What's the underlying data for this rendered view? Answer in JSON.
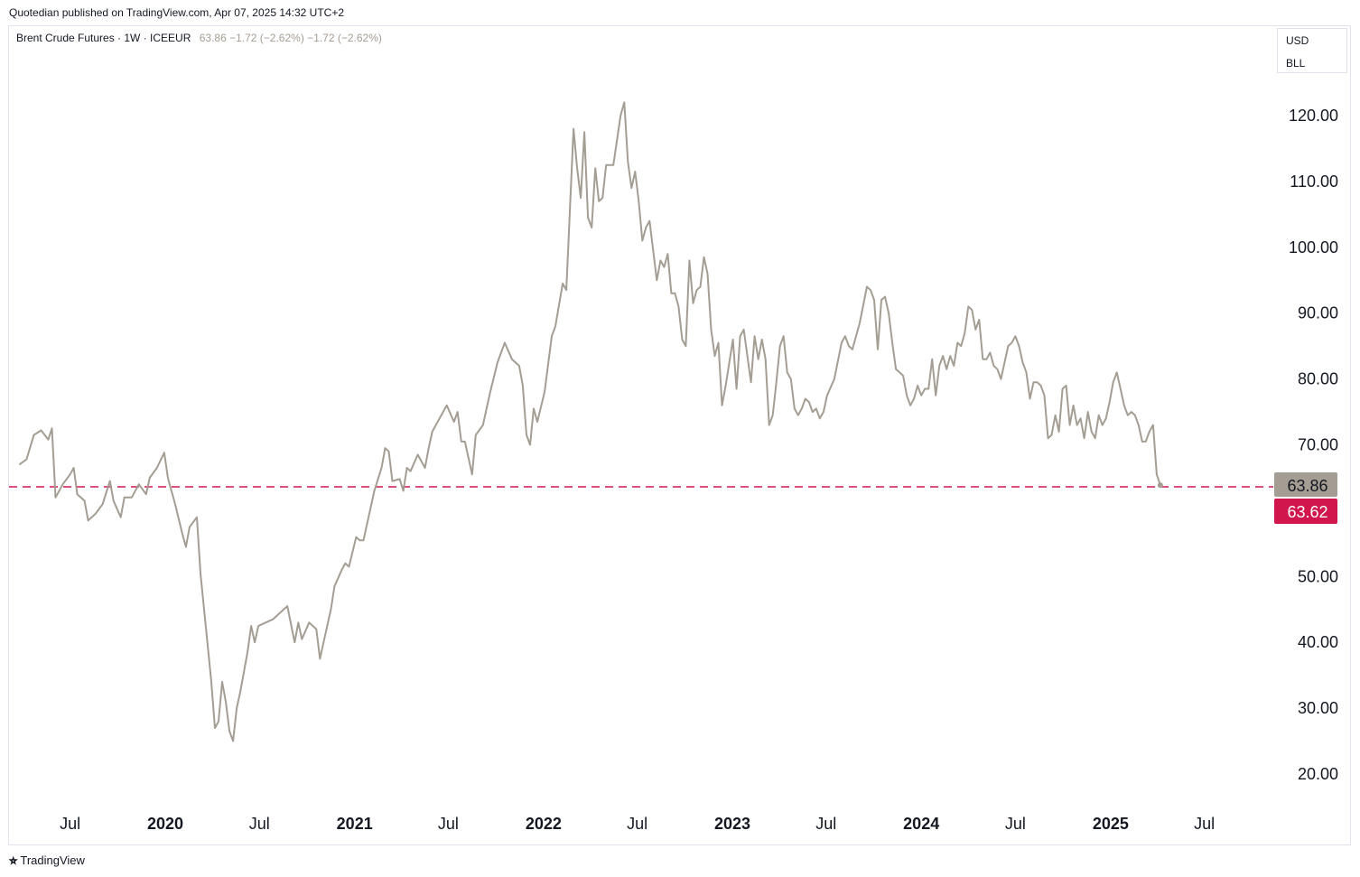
{
  "header": {
    "publisher_line": "Quotedian published on TradingView.com, Apr 07, 2025 14:32 UTC+2"
  },
  "legend": {
    "symbol": "Brent Crude Futures · 1W · ICEEUR",
    "values": "63.86  −1.72 (−2.62%)  −1.72 (−2.62%)"
  },
  "unit_box": {
    "currency": "USD",
    "unit": "BLL"
  },
  "footer": {
    "brand": "TradingView"
  },
  "colors": {
    "line": "#a49d93",
    "reference_line": "#d1164d",
    "last_label_bg": "#a49d93",
    "ref_label_bg": "#d1164d"
  },
  "chart_data": {
    "type": "line",
    "interval": "1W",
    "y_ticks": [
      "120.00",
      "110.00",
      "100.00",
      "90.00",
      "80.00",
      "70.00",
      "50.00",
      "40.00",
      "30.00",
      "20.00"
    ],
    "x_ticks": [
      {
        "label": "Jul",
        "date": "2019-07-01"
      },
      {
        "label": "2020",
        "date": "2020-01-01"
      },
      {
        "label": "Jul",
        "date": "2020-07-01"
      },
      {
        "label": "2021",
        "date": "2021-01-01"
      },
      {
        "label": "Jul",
        "date": "2021-07-01"
      },
      {
        "label": "2022",
        "date": "2022-01-01"
      },
      {
        "label": "Jul",
        "date": "2022-07-01"
      },
      {
        "label": "2023",
        "date": "2023-01-01"
      },
      {
        "label": "Jul",
        "date": "2023-07-01"
      },
      {
        "label": "2024",
        "date": "2024-01-01"
      },
      {
        "label": "Jul",
        "date": "2024-07-01"
      },
      {
        "label": "2025",
        "date": "2025-01-01"
      },
      {
        "label": "Jul",
        "date": "2025-07-01"
      }
    ],
    "last_value": "63.86",
    "reference_value": "63.62",
    "series": [
      {
        "points": [
          [
            "2019-03-25",
            67.0
          ],
          [
            "2019-04-08",
            67.8
          ],
          [
            "2019-04-22",
            71.5
          ],
          [
            "2019-05-06",
            72.2
          ],
          [
            "2019-05-20",
            70.8
          ],
          [
            "2019-05-27",
            72.5
          ],
          [
            "2019-06-03",
            62.0
          ],
          [
            "2019-06-17",
            64.0
          ],
          [
            "2019-07-01",
            65.5
          ],
          [
            "2019-07-08",
            66.5
          ],
          [
            "2019-07-15",
            62.5
          ],
          [
            "2019-07-29",
            61.5
          ],
          [
            "2019-08-05",
            58.5
          ],
          [
            "2019-08-19",
            59.5
          ],
          [
            "2019-09-02",
            61.0
          ],
          [
            "2019-09-16",
            64.5
          ],
          [
            "2019-09-23",
            61.5
          ],
          [
            "2019-10-07",
            59.0
          ],
          [
            "2019-10-14",
            62.0
          ],
          [
            "2019-10-28",
            62.0
          ],
          [
            "2019-11-11",
            64.0
          ],
          [
            "2019-11-25",
            62.5
          ],
          [
            "2019-12-02",
            65.0
          ],
          [
            "2019-12-16",
            66.5
          ],
          [
            "2019-12-30",
            68.8
          ],
          [
            "2020-01-06",
            65.0
          ],
          [
            "2020-01-20",
            61.0
          ],
          [
            "2020-02-03",
            56.5
          ],
          [
            "2020-02-10",
            54.5
          ],
          [
            "2020-02-17",
            57.5
          ],
          [
            "2020-03-02",
            59.0
          ],
          [
            "2020-03-09",
            50.5
          ],
          [
            "2020-03-16",
            45.0
          ],
          [
            "2020-03-30",
            34.0
          ],
          [
            "2020-04-06",
            27.0
          ],
          [
            "2020-04-13",
            28.0
          ],
          [
            "2020-04-20",
            34.0
          ],
          [
            "2020-04-27",
            31.0
          ],
          [
            "2020-05-04",
            26.5
          ],
          [
            "2020-05-11",
            25.0
          ],
          [
            "2020-05-18",
            30.0
          ],
          [
            "2020-05-25",
            32.5
          ],
          [
            "2020-06-08",
            38.5
          ],
          [
            "2020-06-15",
            42.5
          ],
          [
            "2020-06-22",
            40.0
          ],
          [
            "2020-06-29",
            42.5
          ],
          [
            "2020-07-13",
            43.0
          ],
          [
            "2020-07-27",
            43.5
          ],
          [
            "2020-08-10",
            44.5
          ],
          [
            "2020-08-24",
            45.5
          ],
          [
            "2020-09-07",
            40.0
          ],
          [
            "2020-09-14",
            43.0
          ],
          [
            "2020-09-21",
            40.5
          ],
          [
            "2020-10-05",
            43.0
          ],
          [
            "2020-10-19",
            42.0
          ],
          [
            "2020-10-26",
            37.5
          ],
          [
            "2020-11-02",
            40.0
          ],
          [
            "2020-11-16",
            45.0
          ],
          [
            "2020-11-23",
            48.5
          ],
          [
            "2020-12-07",
            51.0
          ],
          [
            "2020-12-14",
            52.0
          ],
          [
            "2020-12-21",
            51.5
          ],
          [
            "2021-01-04",
            56.0
          ],
          [
            "2021-01-11",
            55.5
          ],
          [
            "2021-01-18",
            55.5
          ],
          [
            "2021-02-01",
            60.5
          ],
          [
            "2021-02-08",
            63.0
          ],
          [
            "2021-02-22",
            66.5
          ],
          [
            "2021-03-01",
            69.5
          ],
          [
            "2021-03-08",
            69.0
          ],
          [
            "2021-03-15",
            64.5
          ],
          [
            "2021-03-29",
            64.8
          ],
          [
            "2021-04-05",
            63.0
          ],
          [
            "2021-04-12",
            66.5
          ],
          [
            "2021-04-19",
            66.0
          ],
          [
            "2021-05-03",
            68.5
          ],
          [
            "2021-05-17",
            66.5
          ],
          [
            "2021-05-24",
            69.5
          ],
          [
            "2021-05-31",
            72.0
          ],
          [
            "2021-06-14",
            74.0
          ],
          [
            "2021-06-28",
            76.0
          ],
          [
            "2021-07-12",
            73.5
          ],
          [
            "2021-07-19",
            75.0
          ],
          [
            "2021-07-26",
            70.5
          ],
          [
            "2021-08-02",
            70.5
          ],
          [
            "2021-08-16",
            65.5
          ],
          [
            "2021-08-23",
            71.5
          ],
          [
            "2021-09-06",
            73.0
          ],
          [
            "2021-09-20",
            78.0
          ],
          [
            "2021-10-04",
            82.5
          ],
          [
            "2021-10-18",
            85.5
          ],
          [
            "2021-11-01",
            83.0
          ],
          [
            "2021-11-15",
            82.0
          ],
          [
            "2021-11-22",
            79.0
          ],
          [
            "2021-11-29",
            71.5
          ],
          [
            "2021-12-06",
            70.0
          ],
          [
            "2021-12-13",
            75.5
          ],
          [
            "2021-12-20",
            73.5
          ],
          [
            "2022-01-03",
            78.0
          ],
          [
            "2022-01-17",
            86.5
          ],
          [
            "2022-01-24",
            88.0
          ],
          [
            "2022-02-07",
            94.5
          ],
          [
            "2022-02-14",
            93.5
          ],
          [
            "2022-02-28",
            118.0
          ],
          [
            "2022-03-07",
            112.0
          ],
          [
            "2022-03-14",
            107.5
          ],
          [
            "2022-03-21",
            117.5
          ],
          [
            "2022-03-28",
            104.5
          ],
          [
            "2022-04-04",
            103.0
          ],
          [
            "2022-04-11",
            112.0
          ],
          [
            "2022-04-18",
            107.0
          ],
          [
            "2022-04-25",
            107.5
          ],
          [
            "2022-05-02",
            112.5
          ],
          [
            "2022-05-16",
            112.5
          ],
          [
            "2022-05-30",
            120.0
          ],
          [
            "2022-06-06",
            122.0
          ],
          [
            "2022-06-13",
            113.0
          ],
          [
            "2022-06-20",
            109.0
          ],
          [
            "2022-06-27",
            111.5
          ],
          [
            "2022-07-04",
            107.0
          ],
          [
            "2022-07-11",
            101.0
          ],
          [
            "2022-07-18",
            103.0
          ],
          [
            "2022-07-25",
            104.0
          ],
          [
            "2022-08-08",
            95.0
          ],
          [
            "2022-08-15",
            98.0
          ],
          [
            "2022-08-22",
            97.0
          ],
          [
            "2022-08-29",
            99.0
          ],
          [
            "2022-09-05",
            93.0
          ],
          [
            "2022-09-12",
            93.0
          ],
          [
            "2022-09-19",
            91.0
          ],
          [
            "2022-09-26",
            86.0
          ],
          [
            "2022-10-03",
            85.0
          ],
          [
            "2022-10-10",
            98.0
          ],
          [
            "2022-10-17",
            91.5
          ],
          [
            "2022-10-24",
            93.5
          ],
          [
            "2022-10-31",
            94.0
          ],
          [
            "2022-11-07",
            98.5
          ],
          [
            "2022-11-14",
            96.0
          ],
          [
            "2022-11-21",
            87.5
          ],
          [
            "2022-11-28",
            83.5
          ],
          [
            "2022-12-05",
            85.5
          ],
          [
            "2022-12-12",
            76.0
          ],
          [
            "2022-12-19",
            79.0
          ],
          [
            "2023-01-02",
            86.0
          ],
          [
            "2023-01-09",
            78.5
          ],
          [
            "2023-01-16",
            86.5
          ],
          [
            "2023-01-23",
            87.5
          ],
          [
            "2023-02-06",
            79.5
          ],
          [
            "2023-02-13",
            86.5
          ],
          [
            "2023-02-20",
            83.0
          ],
          [
            "2023-02-27",
            86.0
          ],
          [
            "2023-03-06",
            83.0
          ],
          [
            "2023-03-13",
            73.0
          ],
          [
            "2023-03-20",
            74.5
          ],
          [
            "2023-03-27",
            79.5
          ],
          [
            "2023-04-03",
            85.0
          ],
          [
            "2023-04-10",
            86.5
          ],
          [
            "2023-04-17",
            81.0
          ],
          [
            "2023-04-24",
            80.0
          ],
          [
            "2023-05-01",
            75.5
          ],
          [
            "2023-05-08",
            74.5
          ],
          [
            "2023-05-15",
            75.5
          ],
          [
            "2023-05-22",
            77.0
          ],
          [
            "2023-05-29",
            76.5
          ],
          [
            "2023-06-05",
            75.0
          ],
          [
            "2023-06-12",
            75.5
          ],
          [
            "2023-06-19",
            74.0
          ],
          [
            "2023-06-26",
            75.0
          ],
          [
            "2023-07-03",
            77.5
          ],
          [
            "2023-07-17",
            80.0
          ],
          [
            "2023-07-31",
            85.5
          ],
          [
            "2023-08-07",
            86.5
          ],
          [
            "2023-08-14",
            85.0
          ],
          [
            "2023-08-21",
            84.5
          ],
          [
            "2023-09-04",
            88.5
          ],
          [
            "2023-09-18",
            94.0
          ],
          [
            "2023-09-25",
            93.5
          ],
          [
            "2023-10-02",
            92.0
          ],
          [
            "2023-10-09",
            84.5
          ],
          [
            "2023-10-16",
            92.0
          ],
          [
            "2023-10-23",
            92.5
          ],
          [
            "2023-10-30",
            90.0
          ],
          [
            "2023-11-06",
            85.5
          ],
          [
            "2023-11-13",
            81.5
          ],
          [
            "2023-11-20",
            81.0
          ],
          [
            "2023-11-27",
            80.5
          ],
          [
            "2023-12-04",
            77.5
          ],
          [
            "2023-12-11",
            76.0
          ],
          [
            "2023-12-18",
            77.0
          ],
          [
            "2023-12-25",
            79.0
          ],
          [
            "2024-01-01",
            77.5
          ],
          [
            "2024-01-08",
            78.5
          ],
          [
            "2024-01-15",
            78.5
          ],
          [
            "2024-01-22",
            83.0
          ],
          [
            "2024-01-29",
            77.5
          ],
          [
            "2024-02-05",
            82.0
          ],
          [
            "2024-02-12",
            83.5
          ],
          [
            "2024-02-19",
            81.5
          ],
          [
            "2024-02-26",
            83.5
          ],
          [
            "2024-03-04",
            82.0
          ],
          [
            "2024-03-11",
            85.5
          ],
          [
            "2024-03-18",
            85.0
          ],
          [
            "2024-03-25",
            87.0
          ],
          [
            "2024-04-01",
            91.0
          ],
          [
            "2024-04-08",
            90.5
          ],
          [
            "2024-04-15",
            87.5
          ],
          [
            "2024-04-22",
            89.0
          ],
          [
            "2024-04-29",
            83.0
          ],
          [
            "2024-05-06",
            83.0
          ],
          [
            "2024-05-13",
            84.0
          ],
          [
            "2024-05-20",
            82.0
          ],
          [
            "2024-05-27",
            81.5
          ],
          [
            "2024-06-03",
            80.0
          ],
          [
            "2024-06-10",
            82.5
          ],
          [
            "2024-06-17",
            85.0
          ],
          [
            "2024-06-24",
            85.5
          ],
          [
            "2024-07-01",
            86.5
          ],
          [
            "2024-07-08",
            85.0
          ],
          [
            "2024-07-15",
            82.5
          ],
          [
            "2024-07-22",
            81.0
          ],
          [
            "2024-07-29",
            77.0
          ],
          [
            "2024-08-05",
            79.5
          ],
          [
            "2024-08-12",
            79.5
          ],
          [
            "2024-08-19",
            79.0
          ],
          [
            "2024-08-26",
            77.5
          ],
          [
            "2024-09-02",
            71.0
          ],
          [
            "2024-09-09",
            71.5
          ],
          [
            "2024-09-16",
            74.5
          ],
          [
            "2024-09-23",
            72.0
          ],
          [
            "2024-09-30",
            78.5
          ],
          [
            "2024-10-07",
            79.0
          ],
          [
            "2024-10-14",
            73.0
          ],
          [
            "2024-10-21",
            76.0
          ],
          [
            "2024-10-28",
            73.0
          ],
          [
            "2024-11-04",
            74.0
          ],
          [
            "2024-11-11",
            71.0
          ],
          [
            "2024-11-18",
            75.0
          ],
          [
            "2024-11-25",
            72.0
          ],
          [
            "2024-12-02",
            71.0
          ],
          [
            "2024-12-09",
            74.5
          ],
          [
            "2024-12-16",
            73.0
          ],
          [
            "2024-12-23",
            74.0
          ],
          [
            "2024-12-30",
            76.5
          ],
          [
            "2025-01-06",
            79.5
          ],
          [
            "2025-01-13",
            81.0
          ],
          [
            "2025-01-20",
            78.5
          ],
          [
            "2025-01-27",
            76.0
          ],
          [
            "2025-02-03",
            74.5
          ],
          [
            "2025-02-10",
            75.0
          ],
          [
            "2025-02-17",
            74.5
          ],
          [
            "2025-02-24",
            73.0
          ],
          [
            "2025-03-03",
            70.5
          ],
          [
            "2025-03-10",
            70.5
          ],
          [
            "2025-03-17",
            72.0
          ],
          [
            "2025-03-24",
            73.0
          ],
          [
            "2025-03-31",
            65.5
          ],
          [
            "2025-04-07",
            63.86
          ]
        ]
      }
    ]
  }
}
